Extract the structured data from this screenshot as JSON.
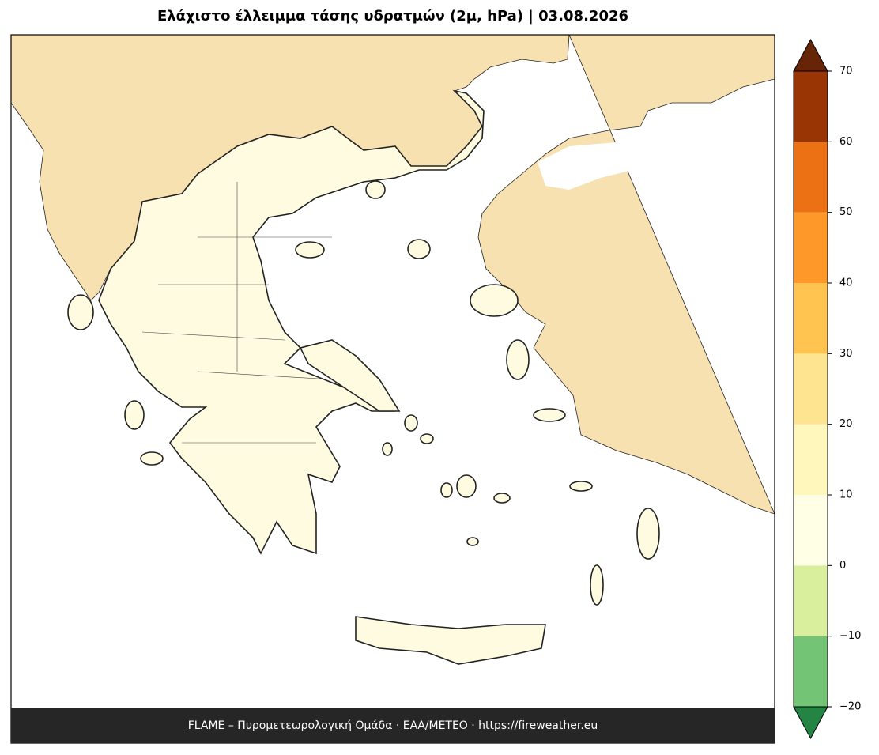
{
  "title": "Ελάχιστο έλλειμμα τάσης υδρατμών (2μ, hPa)  |  03.08.2026",
  "footer": "FLAME – Πυρομετεωρολογική Ομάδα · ΕΑΑ/METEO · https://fireweather.eu",
  "colorbar": {
    "lim": [
      -20,
      70
    ],
    "ticks": [
      {
        "value": -20,
        "label": "−20"
      },
      {
        "value": -10,
        "label": "−10"
      },
      0,
      10,
      20,
      30,
      40,
      50,
      60,
      70
    ],
    "colors": [
      "#74c476",
      "#d9ef9e",
      "#ffffe5",
      "#fff7bc",
      "#fee391",
      "#fec44f",
      "#fe9929",
      "#ec7014",
      "#993404"
    ],
    "under_color": "#238443",
    "over_color": "#662506"
  }
}
